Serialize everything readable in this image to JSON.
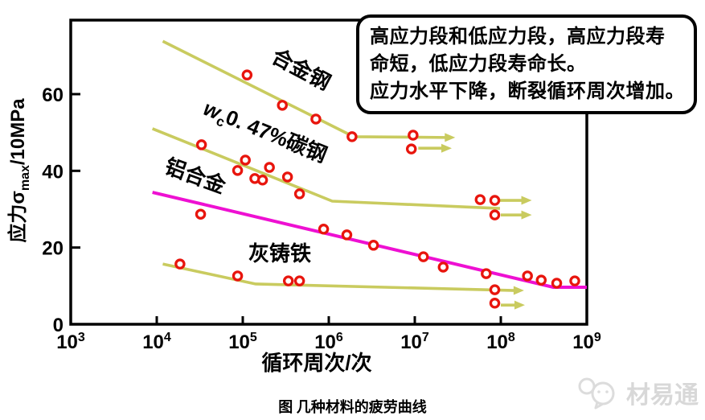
{
  "figure": {
    "caption": "图  几种材料的疲劳曲线",
    "watermark": "材易通"
  },
  "annotation_box": {
    "lines": [
      "高应力段和低应力段，高应力段寿",
      "命短，低应力段寿命长。",
      "应力水平下降，断裂循环周次增加。"
    ]
  },
  "chart_data": {
    "type": "line",
    "title": "",
    "xlabel": "循环周次/次",
    "ylabel": "应力σmax/10MPa",
    "ylabel_parts": [
      {
        "t": "应力σ"
      },
      {
        "t": "max",
        "s": "sub"
      },
      {
        "t": "/10MPa"
      }
    ],
    "x_scale": "log",
    "x_tick_exponents": [
      3,
      4,
      5,
      6,
      7,
      8,
      9
    ],
    "x_tick_labels": [
      "10³",
      "10⁴",
      "10⁵",
      "10⁶",
      "10⁷",
      "10⁸",
      "10⁹"
    ],
    "y_ticks": [
      0,
      20,
      40,
      60
    ],
    "xlim_log": [
      3,
      9
    ],
    "ylim": [
      0,
      79
    ],
    "grid": false,
    "legend_position": "inline-labels",
    "marker": {
      "shape": "open-circle",
      "color": "#E8150D"
    },
    "note": "x = cycles to failure (log10 exponent), y = stress amplitude in 10MPa units; arrows mark run-out (no failure) specimens",
    "series": [
      {
        "id": "alloy-steel",
        "name": "合金钢",
        "label_parts": [
          {
            "t": "合金钢"
          }
        ],
        "label_pos": [
          5.64,
          64.8
        ],
        "label_rotation": 28,
        "color": "#C9CB5F",
        "line": [
          [
            4.07,
            73.8
          ],
          [
            6.29,
            48.9
          ],
          [
            7.47,
            48.7
          ]
        ],
        "arrow_end": true,
        "arrows": [
          {
            "from": [
              7.04,
              45.9
            ],
            "to": [
              7.43,
              45.9
            ]
          }
        ],
        "points": [
          [
            5.05,
            65.0
          ],
          [
            5.46,
            57.1
          ],
          [
            5.85,
            53.5
          ],
          [
            6.27,
            48.9
          ],
          [
            6.98,
            49.3
          ],
          [
            6.96,
            45.7
          ]
        ]
      },
      {
        "id": "carbon-steel",
        "name": "wc0. 47%碳钢",
        "label_parts": [
          {
            "t": "w",
            "s": "i"
          },
          {
            "t": "c",
            "s": "sub"
          },
          {
            "t": "0. 47%碳钢"
          }
        ],
        "label_pos": [
          5.23,
          48.5
        ],
        "label_rotation": 22,
        "color": "#C9CB5F",
        "line": [
          [
            3.95,
            51.0
          ],
          [
            6.04,
            32.1
          ],
          [
            7.99,
            30.2
          ]
        ],
        "arrow_end": false,
        "arrows": [
          {
            "from": [
              7.99,
              32.3
            ],
            "to": [
              8.36,
              32.3
            ]
          },
          {
            "from": [
              8.0,
              28.5
            ],
            "to": [
              8.36,
              28.5
            ]
          }
        ],
        "points": [
          [
            4.52,
            46.8
          ],
          [
            5.03,
            42.8
          ],
          [
            4.94,
            40.1
          ],
          [
            5.14,
            38.0
          ],
          [
            5.23,
            37.6
          ],
          [
            5.31,
            40.9
          ],
          [
            5.52,
            38.4
          ],
          [
            5.66,
            34.0
          ],
          [
            7.76,
            32.5
          ],
          [
            7.93,
            32.3
          ],
          [
            7.93,
            28.5
          ]
        ]
      },
      {
        "id": "aluminum-alloy",
        "name": "铝合金",
        "label_parts": [
          {
            "t": "铝合金"
          }
        ],
        "label_pos": [
          4.42,
          36.9
        ],
        "label_rotation": 20,
        "color": "#EE10D2",
        "line": [
          [
            3.95,
            34.4
          ],
          [
            8.61,
            9.65
          ],
          [
            9.0,
            9.65
          ]
        ],
        "arrow_end": false,
        "arrows": [],
        "points": [
          [
            4.51,
            28.7
          ],
          [
            5.94,
            24.8
          ],
          [
            6.21,
            23.3
          ],
          [
            6.52,
            20.6
          ],
          [
            7.1,
            17.6
          ],
          [
            7.33,
            14.9
          ],
          [
            7.83,
            13.2
          ],
          [
            8.31,
            12.6
          ],
          [
            8.47,
            11.5
          ],
          [
            8.65,
            10.7
          ],
          [
            8.86,
            11.3
          ]
        ]
      },
      {
        "id": "gray-cast-iron",
        "name": "灰铸铁",
        "label_parts": [
          {
            "t": "灰铸铁"
          }
        ],
        "label_pos": [
          5.43,
          16.6
        ],
        "label_rotation": 0,
        "color": "#C9CB5F",
        "line": [
          [
            4.07,
            15.7
          ],
          [
            5.15,
            10.5
          ],
          [
            8.27,
            8.8
          ]
        ],
        "arrow_end": true,
        "arrows": [
          {
            "from": [
              8.0,
              5.0
            ],
            "to": [
              8.28,
              5.0
            ]
          }
        ],
        "points": [
          [
            4.27,
            15.7
          ],
          [
            4.94,
            12.6
          ],
          [
            5.53,
            11.3
          ],
          [
            5.66,
            11.3
          ],
          [
            7.93,
            9.0
          ],
          [
            7.93,
            5.5
          ]
        ]
      }
    ]
  }
}
